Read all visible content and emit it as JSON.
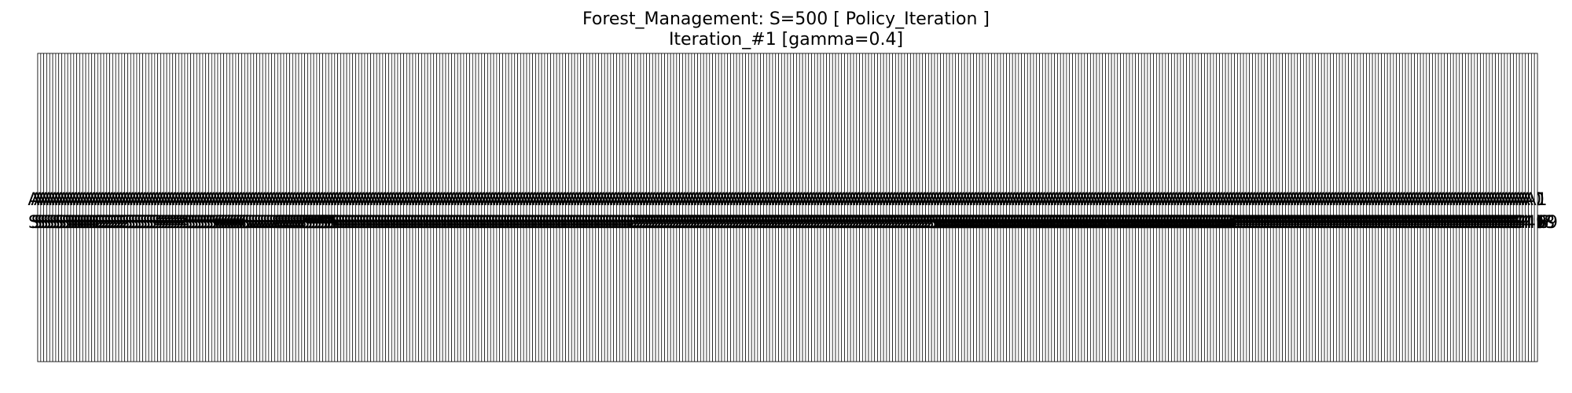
{
  "chart_data": {
    "type": "table",
    "title_line_1": "Forest_Management: S=500 [ Policy_Iteration ]",
    "title_line_2": "Iteration_#1 [gamma=0.4]",
    "num_states": 500,
    "columns_per_row": 500,
    "row_count": 1,
    "cell_label_prefix": "S",
    "action_label_prefix": "A",
    "actions": "all 0 except the final state which is 1",
    "policy": [
      0,
      0,
      0,
      0,
      0,
      0,
      0,
      0,
      0,
      0,
      0,
      0,
      0,
      0,
      0,
      0,
      0,
      0,
      0,
      0,
      0,
      0,
      0,
      0,
      0,
      0,
      0,
      0,
      0,
      0,
      0,
      0,
      0,
      0,
      0,
      0,
      0,
      0,
      0,
      0,
      0,
      0,
      0,
      0,
      0,
      0,
      0,
      0,
      0,
      0,
      0,
      0,
      0,
      0,
      0,
      0,
      0,
      0,
      0,
      0,
      0,
      0,
      0,
      0,
      0,
      0,
      0,
      0,
      0,
      0,
      0,
      0,
      0,
      0,
      0,
      0,
      0,
      0,
      0,
      0,
      0,
      0,
      0,
      0,
      0,
      0,
      0,
      0,
      0,
      0,
      0,
      0,
      0,
      0,
      0,
      0,
      0,
      0,
      0,
      0,
      0,
      0,
      0,
      0,
      0,
      0,
      0,
      0,
      0,
      0,
      0,
      0,
      0,
      0,
      0,
      0,
      0,
      0,
      0,
      0,
      0,
      0,
      0,
      0,
      0,
      0,
      0,
      0,
      0,
      0,
      0,
      0,
      0,
      0,
      0,
      0,
      0,
      0,
      0,
      0,
      0,
      0,
      0,
      0,
      0,
      0,
      0,
      0,
      0,
      0,
      0,
      0,
      0,
      0,
      0,
      0,
      0,
      0,
      0,
      0,
      0,
      0,
      0,
      0,
      0,
      0,
      0,
      0,
      0,
      0,
      0,
      0,
      0,
      0,
      0,
      0,
      0,
      0,
      0,
      0,
      0,
      0,
      0,
      0,
      0,
      0,
      0,
      0,
      0,
      0,
      0,
      0,
      0,
      0,
      0,
      0,
      0,
      0,
      0,
      0,
      0,
      0,
      0,
      0,
      0,
      0,
      0,
      0,
      0,
      0,
      0,
      0,
      0,
      0,
      0,
      0,
      0,
      0,
      0,
      0,
      0,
      0,
      0,
      0,
      0,
      0,
      0,
      0,
      0,
      0,
      0,
      0,
      0,
      0,
      0,
      0,
      0,
      0,
      0,
      0,
      0,
      0,
      0,
      0,
      0,
      0,
      0,
      0,
      0,
      0,
      0,
      0,
      0,
      0,
      0,
      0,
      0,
      0,
      0,
      0,
      0,
      0,
      0,
      0,
      0,
      0,
      0,
      0,
      0,
      0,
      0,
      0,
      0,
      0,
      0,
      0,
      0,
      0,
      0,
      0,
      0,
      0,
      0,
      0,
      0,
      0,
      0,
      0,
      0,
      0,
      0,
      0,
      0,
      0,
      0,
      0,
      0,
      0,
      0,
      0,
      0,
      0,
      0,
      0,
      0,
      0,
      0,
      0,
      0,
      0,
      0,
      0,
      0,
      0,
      0,
      0,
      0,
      0,
      0,
      0,
      0,
      0,
      0,
      0,
      0,
      0,
      0,
      0,
      0,
      0,
      0,
      0,
      0,
      0,
      0,
      0,
      0,
      0,
      0,
      0,
      0,
      0,
      0,
      0,
      0,
      0,
      0,
      0,
      0,
      0,
      0,
      0,
      0,
      0,
      0,
      0,
      0,
      0,
      0,
      0,
      0,
      0,
      0,
      0,
      0,
      0,
      0,
      0,
      0,
      0,
      0,
      0,
      0,
      0,
      0,
      0,
      0,
      0,
      0,
      0,
      0,
      0,
      0,
      0,
      0,
      0,
      0,
      0,
      0,
      0,
      0,
      0,
      0,
      0,
      0,
      0,
      0,
      0,
      0,
      0,
      0,
      0,
      0,
      0,
      0,
      0,
      0,
      0,
      0,
      0,
      0,
      0,
      0,
      0,
      0,
      0,
      0,
      0,
      0,
      0,
      0,
      0,
      0,
      0,
      0,
      0,
      0,
      0,
      0,
      0,
      0,
      0,
      0,
      0,
      0,
      0,
      0,
      0,
      0,
      0,
      0,
      0,
      0,
      0,
      0,
      0,
      0,
      0,
      0,
      0,
      0,
      0,
      0,
      0,
      0,
      0,
      0,
      0,
      0,
      0,
      0,
      0,
      0,
      0,
      0,
      0,
      0,
      0,
      0,
      0,
      0,
      0,
      0,
      0,
      0,
      0,
      0,
      0,
      0,
      0,
      0,
      0,
      0,
      0,
      0,
      0,
      0,
      0,
      0,
      0,
      0,
      0,
      0,
      0,
      0,
      0,
      0,
      0,
      0,
      1
    ],
    "cell_fill": "#ffffff",
    "grid_line_color": "#000000",
    "text_color": "#000000"
  }
}
